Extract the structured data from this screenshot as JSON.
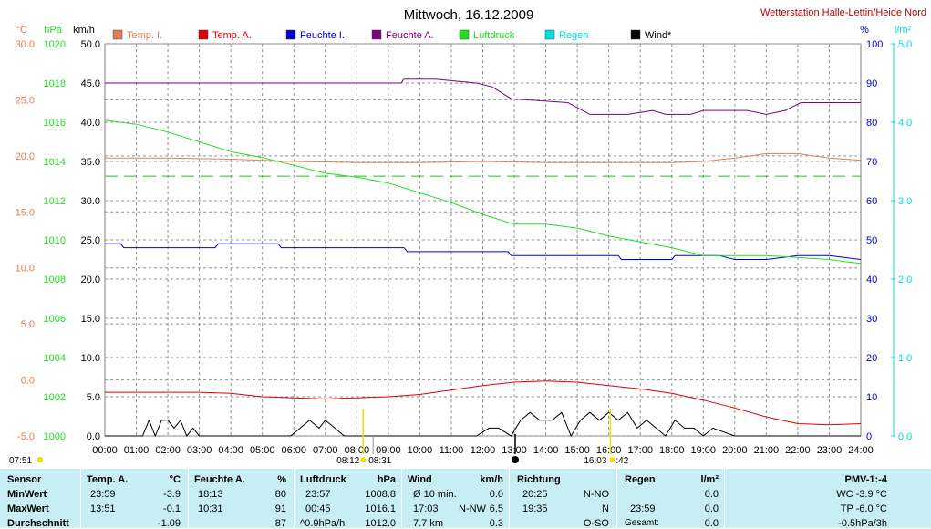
{
  "title": "Mittwoch, 16.12.2009",
  "station": "Wetterstation Halle-Lettin/Heide Nord",
  "colors": {
    "temp_i": "#e08050",
    "temp_a": "#e00000",
    "feuchte_i": "#0000d0",
    "feuchte_a": "#800080",
    "luftdruck": "#20e020",
    "regen": "#00e0e0",
    "wind": "#000000",
    "ref_line": "#20c020"
  },
  "units": {
    "temp": "°C",
    "pressure": "hPa",
    "wind": "km/h",
    "humidity": "%",
    "rain": "l/m²"
  },
  "sun": {
    "sunrise": "08:12",
    "sunrise_b": "08:31",
    "sunset": "16:03",
    "sunset_b": ":42",
    "left_time": "07:51"
  },
  "chart_data": {
    "type": "line",
    "x_ticks": [
      "00:00",
      "01:00",
      "02:00",
      "03:00",
      "04:00",
      "05:00",
      "06:00",
      "07:00",
      "08:00",
      "09:00",
      "10:00",
      "11:00",
      "12:00",
      "13:00",
      "14:00",
      "15:00",
      "16:00",
      "17:00",
      "18:00",
      "19:00",
      "20:00",
      "21:00",
      "22:00",
      "23:00",
      "24:00"
    ],
    "axes": {
      "temp": {
        "ticks": [
          "30.0",
          "25.0",
          "20.0",
          "15.0",
          "10.0",
          "5.0",
          "0.0",
          "-5.0"
        ],
        "range": [
          -5,
          30
        ]
      },
      "pressure": {
        "ticks": [
          "1020",
          "1018",
          "1016",
          "1014",
          "1012",
          "1010",
          "1008",
          "1006",
          "1004",
          "1002",
          "1000"
        ],
        "range": [
          1000,
          1020
        ]
      },
      "wind": {
        "ticks": [
          "50.0",
          "45.0",
          "40.0",
          "35.0",
          "30.0",
          "25.0",
          "20.0",
          "15.0",
          "10.0",
          "5.0",
          "0.0"
        ],
        "range": [
          0,
          50
        ]
      },
      "humidity": {
        "ticks": [
          "100",
          "90",
          "80",
          "70",
          "60",
          "50",
          "40",
          "30",
          "20",
          "10",
          "0"
        ],
        "range": [
          0,
          100
        ]
      },
      "rain": {
        "ticks": [
          "5.0",
          "4.0",
          "3.0",
          "2.0",
          "1.0",
          "0.0"
        ],
        "range": [
          0,
          5
        ]
      }
    },
    "legend": [
      "Temp. I.",
      "Temp. A.",
      "Feuchte I.",
      "Feuchte A.",
      "Luftdruck",
      "Regen",
      "Wind*"
    ],
    "series": [
      {
        "name": "Temp. I.",
        "axis": "temp",
        "x": [
          0,
          2,
          4,
          6,
          8,
          10,
          12,
          14,
          16,
          18,
          19,
          20,
          21,
          22,
          23,
          24
        ],
        "y": [
          19.8,
          19.8,
          19.7,
          19.5,
          19.4,
          19.4,
          19.5,
          19.4,
          19.4,
          19.4,
          19.5,
          19.8,
          20.2,
          20.2,
          19.8,
          19.6
        ]
      },
      {
        "name": "Temp. A.",
        "axis": "temp",
        "x": [
          0,
          1,
          2,
          3,
          4,
          5,
          6,
          7,
          8,
          9,
          10,
          11,
          12,
          13,
          14,
          15,
          16,
          17,
          18,
          19,
          20,
          21,
          22,
          23,
          24
        ],
        "y": [
          -1.1,
          -1.1,
          -1.1,
          -1.1,
          -1.2,
          -1.5,
          -1.6,
          -1.7,
          -1.6,
          -1.5,
          -1.3,
          -0.9,
          -0.5,
          -0.2,
          -0.1,
          -0.2,
          -0.5,
          -0.8,
          -1.2,
          -1.8,
          -2.5,
          -3.3,
          -3.9,
          -4.0,
          -3.9
        ]
      },
      {
        "name": "Feuchte I.",
        "axis": "humidity",
        "x": [
          0,
          0.5,
          0.6,
          3.5,
          3.6,
          5.5,
          5.6,
          9.5,
          9.6,
          12.8,
          12.9,
          16.3,
          16.4,
          18,
          18.1,
          19.5,
          20,
          21,
          22,
          23,
          24
        ],
        "y": [
          49,
          49,
          48,
          48,
          49,
          49,
          48,
          48,
          47,
          47,
          46,
          46,
          45,
          45,
          46,
          46,
          45,
          45,
          46,
          46,
          45
        ]
      },
      {
        "name": "Feuchte A.",
        "axis": "humidity",
        "x": [
          0,
          9.4,
          9.5,
          10.5,
          11.8,
          12.3,
          12.9,
          14.7,
          15.4,
          16.6,
          17.4,
          17.8,
          18.6,
          19,
          20.4,
          21,
          21.6,
          22.1,
          23.4,
          24
        ],
        "y": [
          90,
          90,
          91,
          91,
          90,
          89,
          86,
          85,
          82,
          82,
          83,
          82,
          82,
          83,
          83,
          82,
          83,
          85,
          85,
          85
        ]
      },
      {
        "name": "Luftdruck",
        "axis": "pressure",
        "x": [
          0,
          1,
          2,
          3,
          4,
          5,
          6,
          7,
          8,
          9,
          10,
          11,
          12,
          13,
          14,
          15,
          16,
          17,
          18,
          19,
          20,
          21,
          22,
          23,
          23.5,
          24
        ],
        "y": [
          1016.1,
          1015.9,
          1015.5,
          1015.0,
          1014.5,
          1014.2,
          1013.8,
          1013.4,
          1013.2,
          1012.9,
          1012.4,
          1011.9,
          1011.3,
          1010.8,
          1010.8,
          1010.6,
          1010.2,
          1009.9,
          1009.6,
          1009.2,
          1009.2,
          1009.2,
          1009.1,
          1009.0,
          1008.9,
          1008.8
        ]
      },
      {
        "name": "Wind*",
        "axis": "wind",
        "x": [
          0,
          1.2,
          1.4,
          1.6,
          1.8,
          2.0,
          2.2,
          2.4,
          2.6,
          2.8,
          3.0,
          5.9,
          6.2,
          6.5,
          6.8,
          7.0,
          7.3,
          7.6,
          11.8,
          12.2,
          12.5,
          12.9,
          13.2,
          13.5,
          13.8,
          14.2,
          14.5,
          14.8,
          15.1,
          15.4,
          15.7,
          16.0,
          16.3,
          16.6,
          16.9,
          17.2,
          17.5,
          17.8,
          18.1,
          18.4,
          18.7,
          19.0,
          19.3,
          20.0,
          24
        ],
        "y": [
          0,
          0,
          2,
          0,
          2,
          2,
          1,
          2,
          0,
          1,
          0,
          0,
          1,
          2,
          1,
          2,
          1,
          0,
          0,
          1,
          1,
          0,
          2,
          3,
          2,
          2,
          3,
          0,
          2,
          3,
          2,
          3,
          2,
          3,
          1,
          2,
          1,
          0,
          2,
          1,
          1,
          0,
          1,
          0,
          0
        ]
      }
    ],
    "reference_line": {
      "axis": "pressure",
      "value": 1013.25
    }
  },
  "stats": {
    "sensor": {
      "header": "Sensor",
      "min": "MinWert",
      "max": "MaxWert",
      "avg": "Durchschnitt"
    },
    "temp_a": {
      "header": "Temp. A.",
      "unit": "°C",
      "min_time": "23:59",
      "min": "-3.9",
      "max_time": "13:51",
      "max": "-0.1",
      "avg": "-1.09"
    },
    "feuchte_a": {
      "header": "Feuchte A.",
      "unit": "%",
      "min_time": "18:13",
      "min": "80",
      "max_time": "10:31",
      "max": "91",
      "avg": "87"
    },
    "luftdruck": {
      "header": "Luftdruck",
      "unit": "hPa",
      "min_time": "23:57",
      "min": "1008.8",
      "max_time": "00:45",
      "max": "1016.1",
      "trend": "^0.9hPa/h",
      "avg": "1012.0"
    },
    "wind": {
      "header": "Wind",
      "unit": "km/h",
      "row1_label": "Ø 10 min.",
      "row1_val": "0.0",
      "row2_time": "17:03",
      "row2_dir": "N-NW",
      "row2_val": "6.5",
      "row3_label": "7.7 km",
      "row3_val": "0.3"
    },
    "richtung": {
      "header": "Richtung",
      "row1_time": "20:25",
      "row1_dir": "N-NO",
      "row2_time": "19:35",
      "row2_dir": "N",
      "row3_dir": "O-SO"
    },
    "regen": {
      "header": "Regen",
      "unit": "l/m²",
      "row2_time": "23:59",
      "row2_val": "0.0",
      "row1_val": "0.0",
      "row3_label": "Gesamt:",
      "row3_val": "0.0"
    },
    "pmv": {
      "header": "PMV-1:-4",
      "wc": "WC -3.9 °C",
      "tp": "TP -6.0 °C",
      "trend": "-0.5hPa/3h"
    }
  }
}
